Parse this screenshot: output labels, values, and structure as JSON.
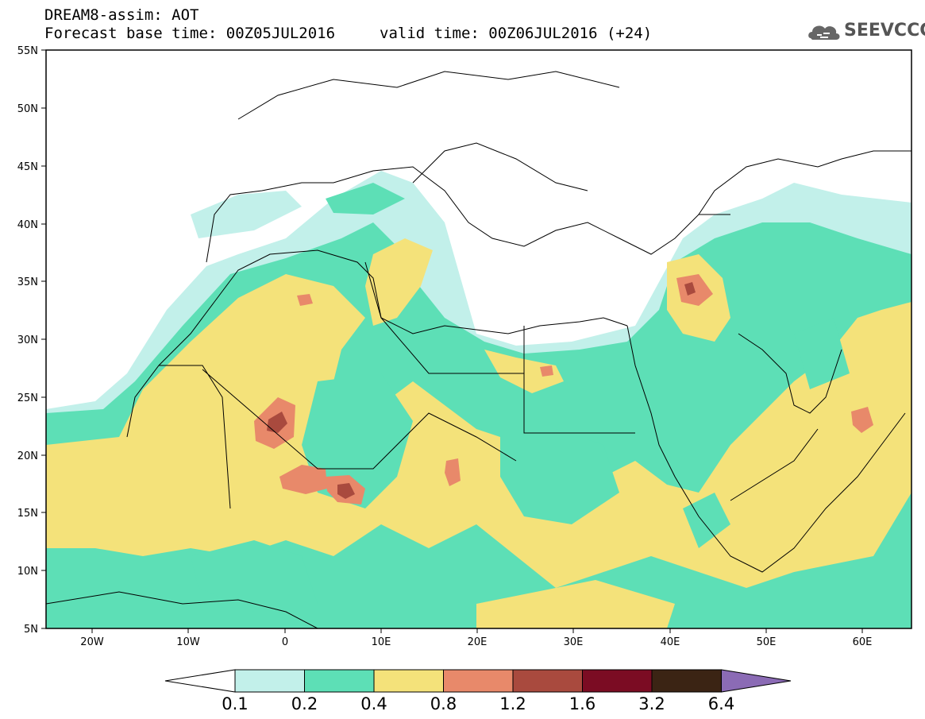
{
  "header": {
    "line1": "DREAM8-assim: AOT",
    "line2": "Forecast base time: 00Z05JUL2016",
    "line3": "valid time: 00Z06JUL2016 (+24)",
    "logo_text": "SEEVCCC"
  },
  "map": {
    "lat_labels": [
      "55N",
      "50N",
      "45N",
      "40N",
      "35N",
      "30N",
      "25N",
      "20N",
      "15N",
      "10N",
      "5N"
    ],
    "lon_labels": [
      "20W",
      "10W",
      "0",
      "10E",
      "20E",
      "30E",
      "40E",
      "50E",
      "60E"
    ],
    "lat_range": [
      5,
      55
    ],
    "lon_range": [
      -25,
      65
    ]
  },
  "colorbar": {
    "labels": [
      "0.1",
      "0.2",
      "0.4",
      "0.8",
      "1.2",
      "1.6",
      "3.2",
      "6.4"
    ],
    "colors": [
      "#c2f0ea",
      "#5ddfb6",
      "#f4e27a",
      "#e8896a",
      "#a94a3e",
      "#7b0c23",
      "#3b2414",
      "#8b6bb5"
    ],
    "below_color": "#ffffff"
  },
  "colors": {
    "c01": "#c2f0ea",
    "c02": "#5ddfb6",
    "c04": "#f4e27a",
    "c08": "#e8896a",
    "c12": "#a94a3e"
  }
}
